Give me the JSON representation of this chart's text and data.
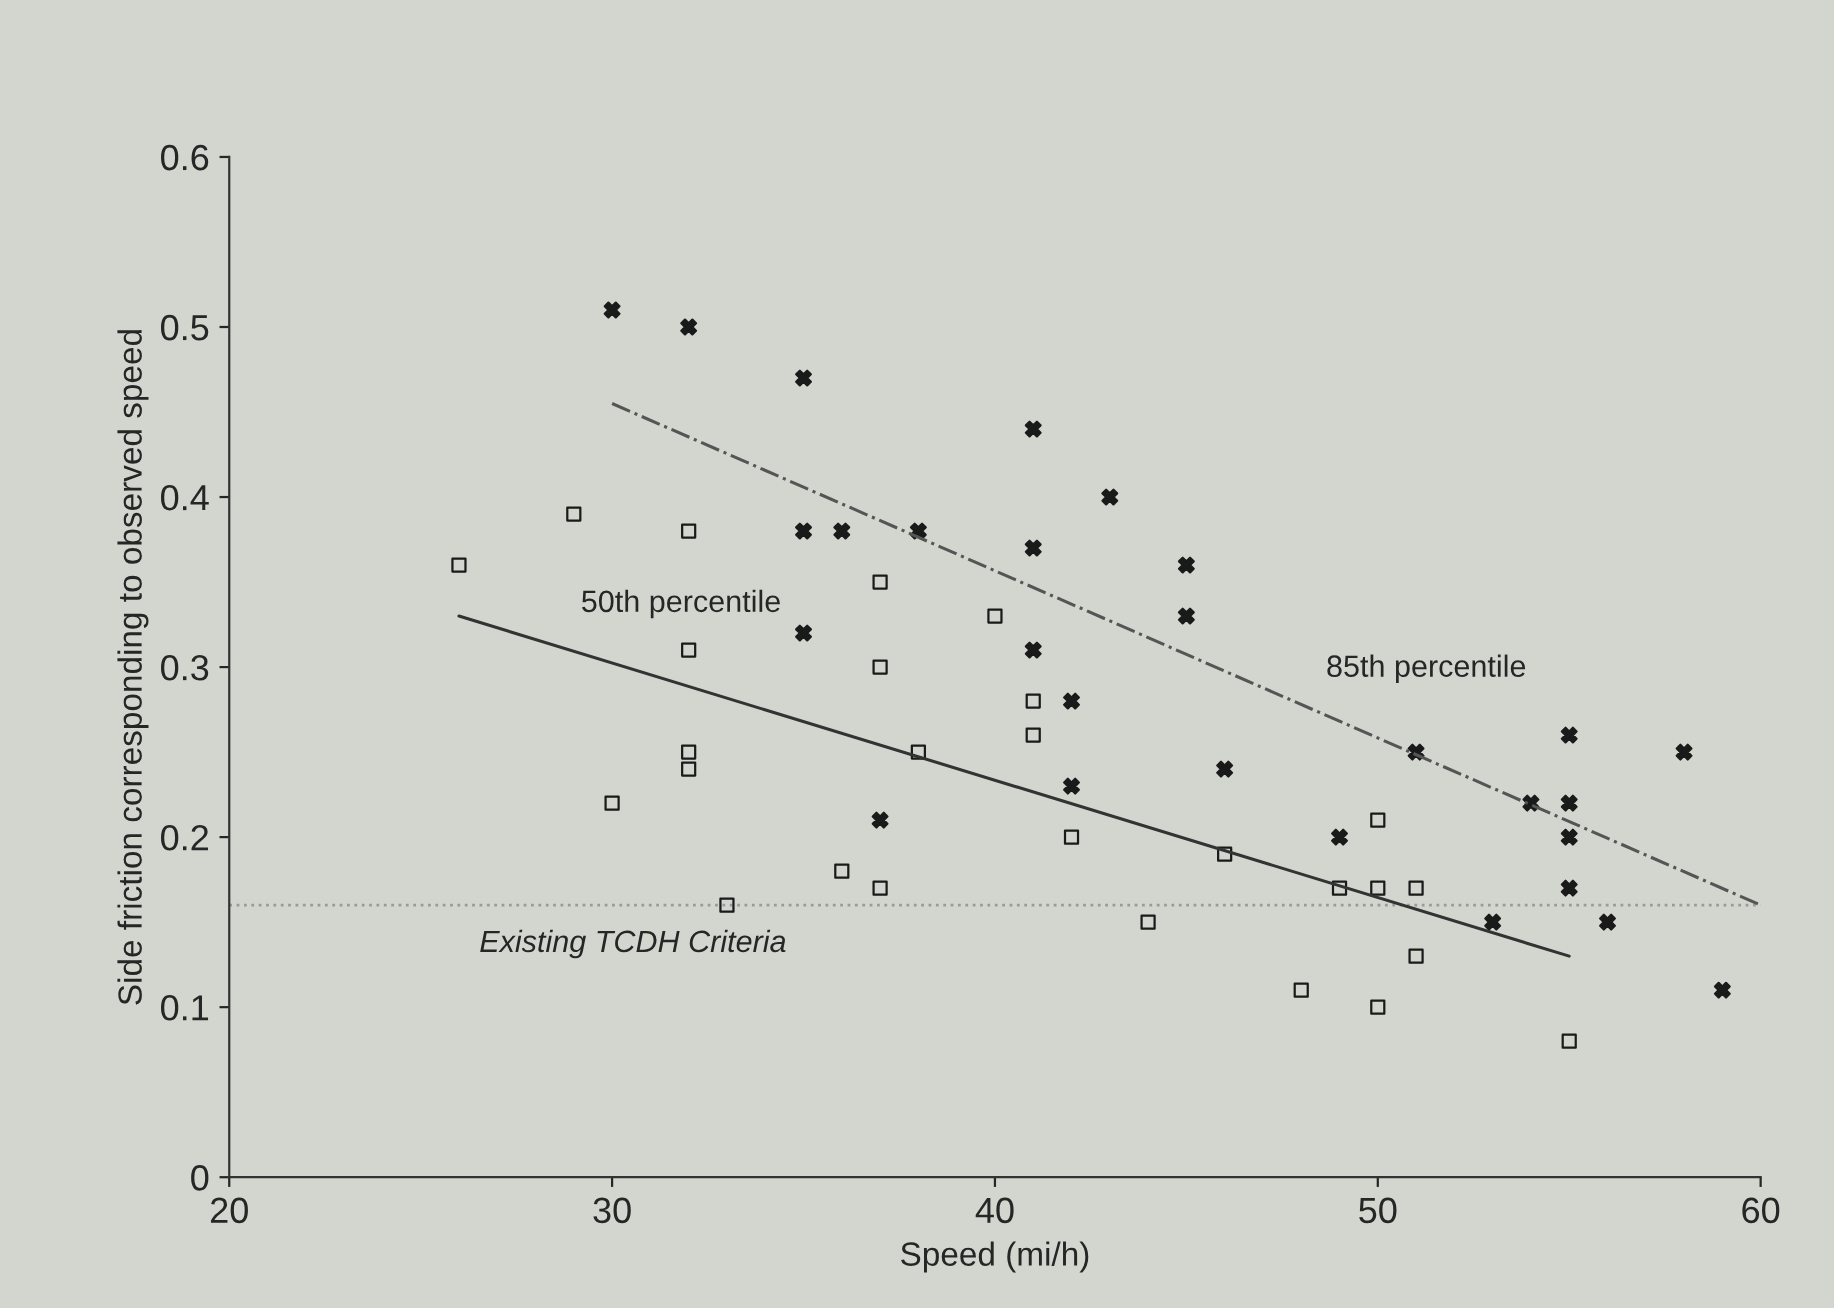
{
  "chart_data": {
    "type": "scatter",
    "xlabel": "Speed (mi/h)",
    "ylabel": "Side friction corresponding to observed speed",
    "xlim": [
      20,
      60
    ],
    "xticks": [
      20,
      30,
      40,
      50,
      60
    ],
    "ylim": [
      0,
      0.6
    ],
    "yticks": [
      0,
      0.1,
      0.2,
      0.3,
      0.4,
      0.5,
      0.6
    ],
    "grid": false,
    "legend": false,
    "series": [
      {
        "marker": "square",
        "color": "#1a1a1a",
        "x": [
          26,
          29,
          32,
          32,
          32,
          32,
          30,
          33,
          36,
          37,
          37,
          37,
          38,
          40,
          41,
          41,
          42,
          44,
          46,
          48,
          49,
          50,
          50,
          50,
          51,
          51,
          55
        ],
        "values": [
          0.36,
          0.39,
          0.38,
          0.31,
          0.25,
          0.24,
          0.22,
          0.16,
          0.18,
          0.35,
          0.3,
          0.17,
          0.25,
          0.33,
          0.28,
          0.26,
          0.2,
          0.15,
          0.19,
          0.11,
          0.17,
          0.21,
          0.17,
          0.1,
          0.17,
          0.13,
          0.08
        ]
      },
      {
        "marker": "cross",
        "color": "#1a1a1a",
        "x": [
          30,
          32,
          35,
          35,
          36,
          38,
          35,
          37,
          41,
          41,
          41,
          42,
          42,
          43,
          45,
          45,
          46,
          49,
          51,
          53,
          54,
          55,
          55,
          55,
          55,
          56,
          58,
          59
        ],
        "values": [
          0.51,
          0.5,
          0.47,
          0.38,
          0.38,
          0.38,
          0.32,
          0.21,
          0.44,
          0.37,
          0.31,
          0.28,
          0.23,
          0.4,
          0.36,
          0.33,
          0.24,
          0.2,
          0.25,
          0.15,
          0.22,
          0.26,
          0.22,
          0.2,
          0.17,
          0.15,
          0.25,
          0.11
        ]
      },
      {
        "type": "line",
        "name": "50th percentile",
        "line_style": "solid",
        "marker": "none",
        "color": "#333333",
        "x": [
          26,
          55
        ],
        "values": [
          0.33,
          0.13
        ]
      },
      {
        "type": "line",
        "name": "85th percentile",
        "line_style": "dashed",
        "marker": "none",
        "color": "#555555",
        "x": [
          30,
          60
        ],
        "values": [
          0.455,
          0.16
        ]
      }
    ],
    "ref_lines": [
      {
        "axis": "y",
        "value": 0.16,
        "label": "Existing TCDH Criteria",
        "color": "#9a9a9a",
        "line_style": "dotted"
      }
    ]
  }
}
